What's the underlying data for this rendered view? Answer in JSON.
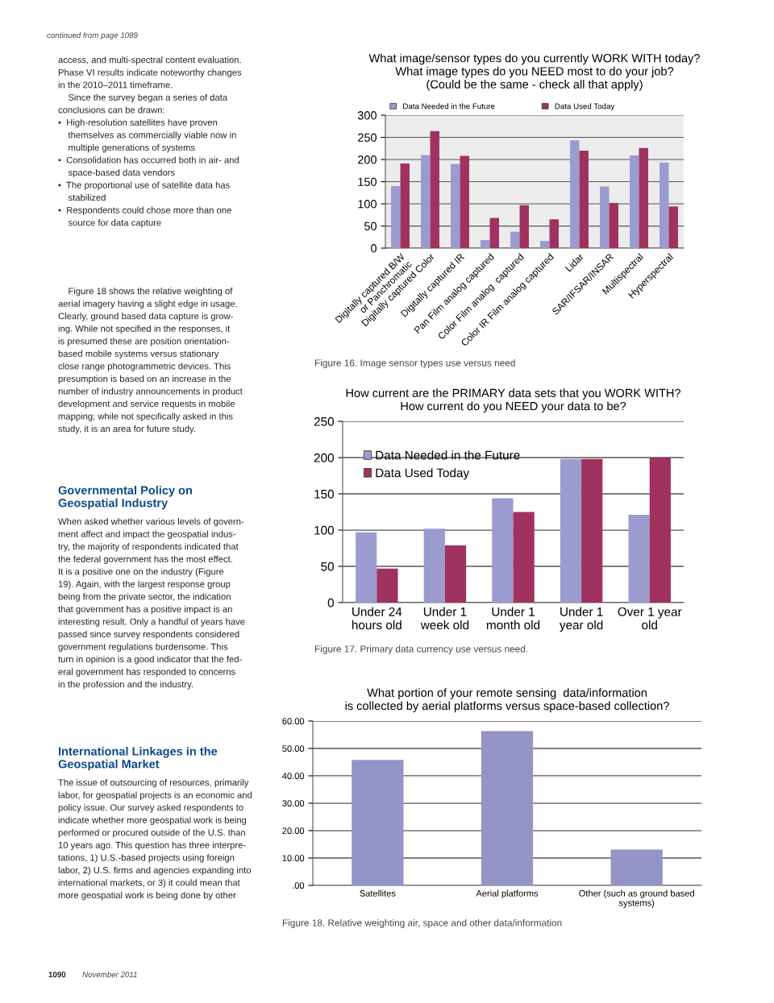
{
  "chart_data": [
    {
      "type": "other",
      "annotations": [
        "continued from page 1089",
        "access, and multi-spectral content evaluation.\nPhase VI results indicate noteworthy changes\nin the 2010–2011 timeframe.\n    Since the survey began a series of data\nconclusions can be drawn:\n•  High-resolution satellites have proven\n    themselves as commercially viable now in\n    multiple generations of systems\n•  Consolidation has occurred both in air- and\n    space-based data vendors\n•  The proportional use of satellite data has\n    stabilized\n•  Respondents could chose more than one\n    source for data capture",
        "    Figure 18 shows the relative weighting of\naerial imagery having a slight edge in usage.\nClearly, ground based data capture is grow-\ning. While not specified in the responses, it\nis presumed these are position orientation-\nbased mobile systems versus stationary\nclose range photogrammetric devices. This\npresumption is based on an increase in the\nnumber of industry announcements in product\ndevelopment and service requests in mobile\nmapping; while not specifically asked in this\nstudy, it is an area for future study.",
        "Governmental Policy on\nGeospatial Industry",
        "When asked whether various levels of govern-\nment affect and impact the geospatial indus-\ntry, the majority of respondents indicated that\nthe federal government has the most effect.\nIt is a positive one on the industry (Figure\n19). Again, with the largest response group\nbeing from the private sector, the indication\nthat government has a positive impact is an\ninteresting result. Only a handful of years have\npassed since survey respondents considered\ngovernment regulations burdensome. This\nturn in opinion is a good indicator that the fed-\neral government has responded to concerns\nin the profession and the industry.",
        "International Linkages in the\nGeospatial Market",
        "The issue of outsourcing of resources, primarily\nlabor, for geospatial projects is an economic and\npolicy issue. Our survey asked respondents to\nindicate whether more geospatial work is being\nperformed or procured outside of the U.S. than\n10 years ago. This question has three interpre-\ntations, 1) U.S.-based projects using foreign\nlabor, 2) U.S. firms and agencies expanding into\ninternational markets, or 3) it could mean that\nmore geospatial work is being done by other",
        "1090",
        "November 2011"
      ]
    },
    {
      "type": "bar",
      "title": "What image/sensor types do you currently WORK WITH today?\nWhat image types do you NEED most to do your job?\n(Could be the same - check all that apply)",
      "categories": [
        "Digitally captured B/W\nor Panchromatic",
        "Digitally captured Color",
        "Digitally captured IR",
        "Pan Film analog captured",
        "Color Film analog  captured",
        "Color IR Film analog captured",
        "Lidar",
        "SAR/IFSAR/INSAR",
        "Multispectral",
        "Hyperspectral"
      ],
      "series": [
        {
          "name": "Data Needed in the Future",
          "color": "#9b9bd0",
          "values": [
            140,
            210,
            190,
            18,
            37,
            16,
            243,
            139,
            209,
            193
          ]
        },
        {
          "name": "Data Used Today",
          "color": "#a0325f",
          "values": [
            191,
            264,
            208,
            68,
            97,
            65,
            220,
            102,
            226,
            94
          ]
        }
      ],
      "ylim": [
        0,
        300
      ],
      "yticks": [
        0,
        50,
        100,
        150,
        200,
        250,
        300
      ],
      "grid": "y",
      "legend": "top",
      "annotations": [
        "Figure 16. Image sensor types use versus need"
      ]
    },
    {
      "type": "bar",
      "title": "How current are the PRIMARY data sets that you WORK WITH?\nHow current do you NEED your data to be?",
      "categories": [
        "Under 24\nhours old",
        "Under 1\nweek old",
        "Under 1\nmonth old",
        "Under 1\nyear old",
        "Over 1 year\nold"
      ],
      "series": [
        {
          "name": "Data Needed in the Future",
          "color": "#9b9bd0",
          "values": [
            97,
            102,
            144,
            198,
            121
          ]
        },
        {
          "name": "Data Used Today",
          "color": "#a0325f",
          "values": [
            47,
            79,
            125,
            198,
            200
          ]
        }
      ],
      "ylim": [
        0,
        250
      ],
      "yticks": [
        0,
        50,
        100,
        150,
        200,
        250
      ],
      "grid": "y",
      "legend": "top left",
      "annotations": [
        "Figure 17. Primary data currency use versus need."
      ]
    },
    {
      "type": "bar",
      "title": "What portion of your remote sensing  data/information\nis collected by aerial platforms versus space-based collection?",
      "categories": [
        "Satellites",
        "Aerial platforms",
        "Other (such as ground based\nsystems)"
      ],
      "values": [
        45.8,
        56.3,
        13.1
      ],
      "color": "#9494c8",
      "ylim": [
        0,
        60
      ],
      "yticks": [
        {
          "value": 0,
          "label": ".00"
        },
        {
          "value": 10,
          "label": "10.00"
        },
        {
          "value": 20,
          "label": "20.00"
        },
        {
          "value": 30,
          "label": "30.00"
        },
        {
          "value": 40,
          "label": "40.00"
        },
        {
          "value": 50,
          "label": "50.00"
        },
        {
          "value": 60,
          "label": "60.00"
        }
      ],
      "grid": "y",
      "annotations": [
        "Figure 18. Relative weighting air, space and other data/information"
      ]
    }
  ]
}
